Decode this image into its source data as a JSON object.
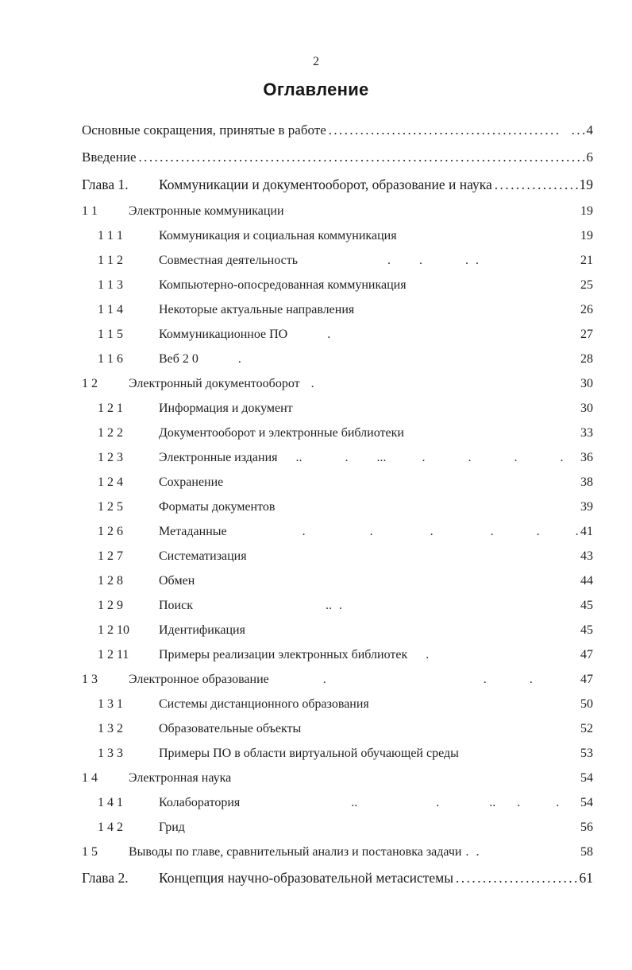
{
  "page": {
    "number": "2",
    "title": "Оглавление"
  },
  "toc": {
    "rows": [
      {
        "kind": "intro",
        "title": "Основные сокращения, принятые в работе",
        "leader": "............................................  ........................................",
        "page": "4"
      },
      {
        "kind": "intro",
        "title": "Введение",
        "leader": "........................................................................................................................................",
        "page": "6"
      },
      {
        "kind": "chapter",
        "label": "Глава 1.",
        "title": "Коммуникации и документооборот, образование и наука",
        "leader": "....................................",
        "page": "19"
      },
      {
        "kind": "l2",
        "num": "1 1",
        "title": "Электронные коммуникации",
        "trail": "",
        "page": "19"
      },
      {
        "kind": "l3",
        "num": "1 1 1",
        "title": "Коммуникация и социальная коммуникация",
        "trail": "",
        "page": "19"
      },
      {
        "kind": "l3",
        "num": "1 1 2",
        "title": "Совместная деятельность",
        "trail": "            .    .      . .                 ..",
        "page": "21"
      },
      {
        "kind": "l3",
        "num": "1 1 3",
        "title": "Компьютерно-опосредованная коммуникация",
        "trail": "",
        "page": "25"
      },
      {
        "kind": "l3",
        "num": "1 1 4",
        "title": "Некоторые актуальные направления",
        "trail": "",
        "page": "26"
      },
      {
        "kind": "l3",
        "num": "1 1 5",
        "title": "Коммуникационное ПО",
        "trail": "     .",
        "page": "27"
      },
      {
        "kind": "l3",
        "num": "1 1 6",
        "title": "Веб 2 0",
        "trail": "     .",
        "page": "28"
      },
      {
        "kind": "l2",
        "num": "1 2",
        "title": "Электронный документооборот",
        "trail": " .",
        "page": "30"
      },
      {
        "kind": "l3",
        "num": "1 2 1",
        "title": "Информация и документ",
        "trail": "",
        "page": "30"
      },
      {
        "kind": "l3",
        "num": "1 2 2",
        "title": "Документооборот и электронные библиотеки",
        "trail": "",
        "page": "33"
      },
      {
        "kind": "l3",
        "num": "1 2 3",
        "title": "Электронные издания",
        "trail": "  ..      .    ...     .      .      .      .",
        "page": "36"
      },
      {
        "kind": "l3",
        "num": "1 2 4",
        "title": "Сохранение",
        "trail": "",
        "page": "38"
      },
      {
        "kind": "l3",
        "num": "1 2 5",
        "title": "Форматы документов",
        "trail": "",
        "page": "39"
      },
      {
        "kind": "l3",
        "num": "1 2 6",
        "title": "Метаданные",
        "trail": "          .         .        .        .      .     ...             .",
        "page": "41"
      },
      {
        "kind": "l3",
        "num": "1 2 7",
        "title": "Систематизация",
        "trail": "",
        "page": "43"
      },
      {
        "kind": "l3",
        "num": "1 2 8",
        "title": "Обмен",
        "trail": "",
        "page": "44"
      },
      {
        "kind": "l3",
        "num": "1 2 9",
        "title": "Поиск",
        "trail": "                  .. .",
        "page": "45"
      },
      {
        "kind": "l3",
        "num": "1 2 10",
        "title": "Идентификация",
        "trail": "",
        "page": "45"
      },
      {
        "kind": "l3",
        "num": "1 2 11",
        "title": "Примеры реализации электронных библиотек",
        "trail": "  .",
        "page": "47"
      },
      {
        "kind": "l2",
        "num": "1 3",
        "title": "Электронное образование",
        "trail": "       .                      .      .",
        "page": "47"
      },
      {
        "kind": "l3",
        "num": "1 3 1",
        "title": "Системы дистанционного образования",
        "trail": "",
        "page": "50"
      },
      {
        "kind": "l3",
        "num": "1 3 2",
        "title": "Образовательные объекты",
        "trail": "",
        "page": "52"
      },
      {
        "kind": "l3",
        "num": "1 3 3",
        "title": "Примеры ПО в области виртуальной обучающей среды",
        "trail": "",
        "page": "53"
      },
      {
        "kind": "l2",
        "num": "1 4",
        "title": "Электронная наука",
        "trail": "",
        "page": "54"
      },
      {
        "kind": "l3",
        "num": "1 4 1",
        "title": "Колаборатория",
        "trail": "               ..           .       ..   .     .      .",
        "page": "54"
      },
      {
        "kind": "l3",
        "num": "1 4 2",
        "title": "Грид",
        "trail": "",
        "page": "56"
      },
      {
        "kind": "l2",
        "num": "1 5",
        "title": "Выводы по главе, сравнительный анализ и постановка задачи",
        "trail": ". .",
        "page": "58"
      },
      {
        "kind": "chapter",
        "label": "Глава 2.",
        "title": "Концепция научно-образовательной метасистемы",
        "leader": "............................................................",
        "page": "61"
      }
    ]
  }
}
